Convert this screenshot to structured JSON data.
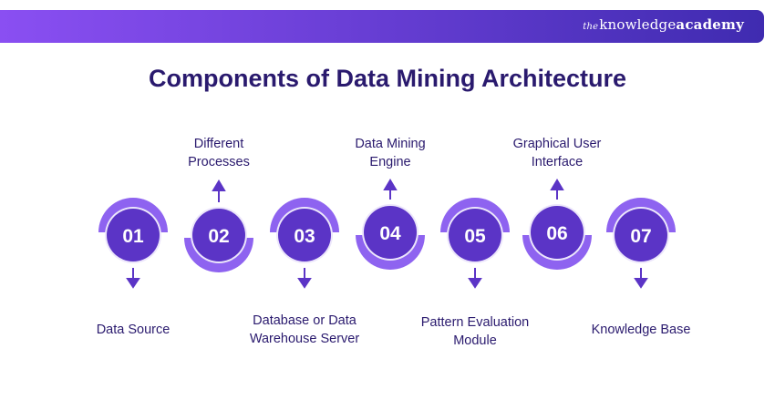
{
  "brand": {
    "prefix": "the",
    "name_regular": "knowledge",
    "name_bold": "academy"
  },
  "title": "Components of Data Mining Architecture",
  "steps": [
    {
      "number": "01",
      "label_lines": [
        "Data Source"
      ],
      "position": "below"
    },
    {
      "number": "02",
      "label_lines": [
        "Different",
        "Processes"
      ],
      "position": "above"
    },
    {
      "number": "03",
      "label_lines": [
        "Database or Data",
        "Warehouse Server"
      ],
      "position": "below"
    },
    {
      "number": "04",
      "label_lines": [
        "Data Mining",
        "Engine"
      ],
      "position": "above"
    },
    {
      "number": "05",
      "label_lines": [
        "Pattern Evaluation",
        "Module"
      ],
      "position": "below"
    },
    {
      "number": "06",
      "label_lines": [
        "Graphical User",
        "Interface"
      ],
      "position": "above"
    },
    {
      "number": "07",
      "label_lines": [
        "Knowledge Base"
      ],
      "position": "below"
    }
  ],
  "colors": {
    "circle_fill": "#5b34c6",
    "arc_fill": "#8e63f0",
    "ring_inner": "#ece6fb",
    "arrow": "#5b34c6",
    "title_text": "#2a1a6e",
    "banner_start": "#8a4ff2",
    "banner_end": "#3f2bb0"
  }
}
